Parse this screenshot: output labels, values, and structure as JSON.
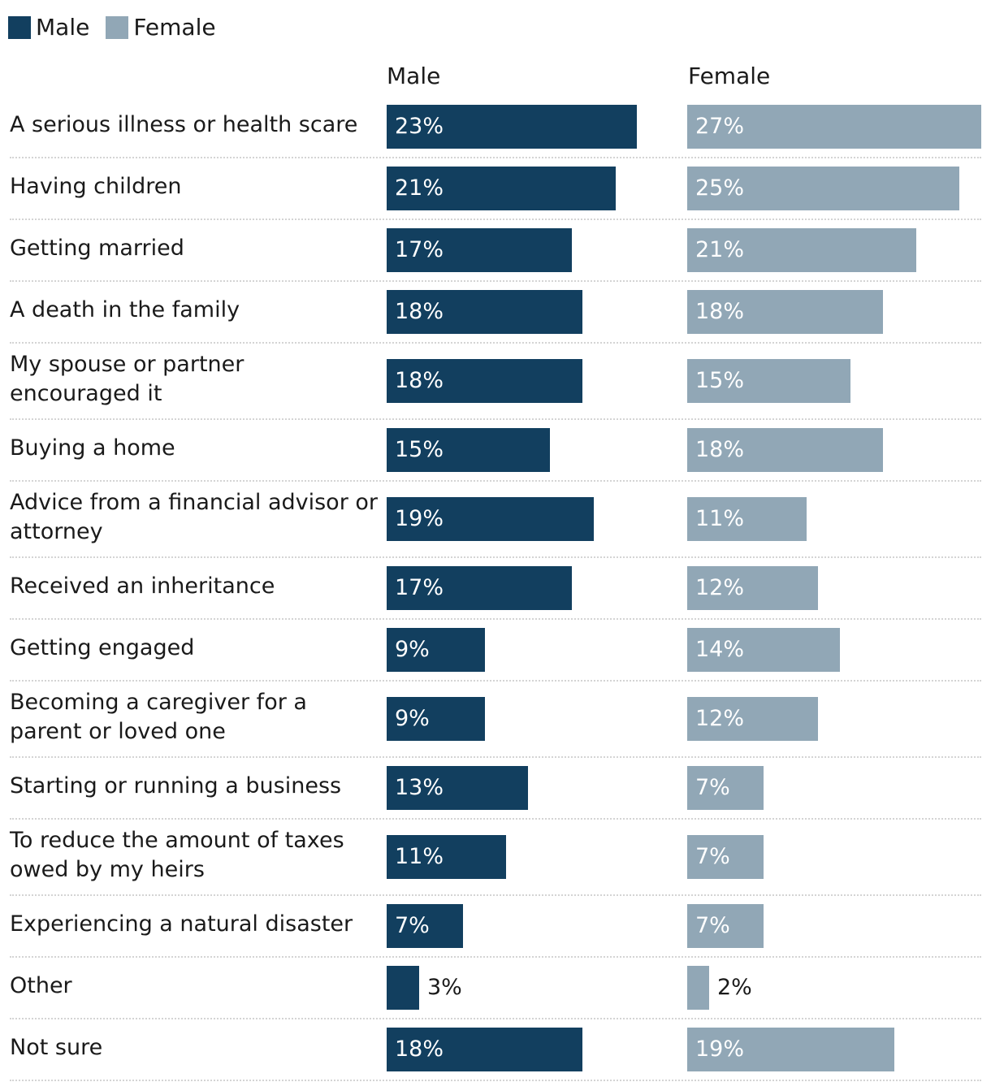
{
  "legend": [
    {
      "label": "Male",
      "color": "#123f5f"
    },
    {
      "label": "Female",
      "color": "#91a7b6"
    }
  ],
  "chart_data": {
    "type": "bar",
    "orientation": "horizontal",
    "column_headers": [
      "Male",
      "Female"
    ],
    "categories": [
      "A serious illness or health scare",
      "Having children",
      "Getting married",
      "A death in the family",
      "My spouse or partner encouraged it",
      "Buying a home",
      "Advice from a financial advisor or attorney",
      "Received an inheritance",
      "Getting engaged",
      "Becoming a caregiver for a parent or loved one",
      "Starting or running a business",
      "To reduce the amount of taxes owed by my heirs",
      "Experiencing a natural disaster",
      "Other",
      "Not sure"
    ],
    "series": [
      {
        "name": "Male",
        "color": "#123f5f",
        "values": [
          23,
          21,
          17,
          18,
          18,
          15,
          19,
          17,
          9,
          9,
          13,
          11,
          7,
          3,
          18
        ]
      },
      {
        "name": "Female",
        "color": "#91a7b6",
        "values": [
          27,
          25,
          21,
          18,
          15,
          18,
          11,
          12,
          14,
          12,
          7,
          7,
          7,
          2,
          19
        ]
      }
    ],
    "value_suffix": "%",
    "xlim": [
      0,
      27
    ]
  }
}
